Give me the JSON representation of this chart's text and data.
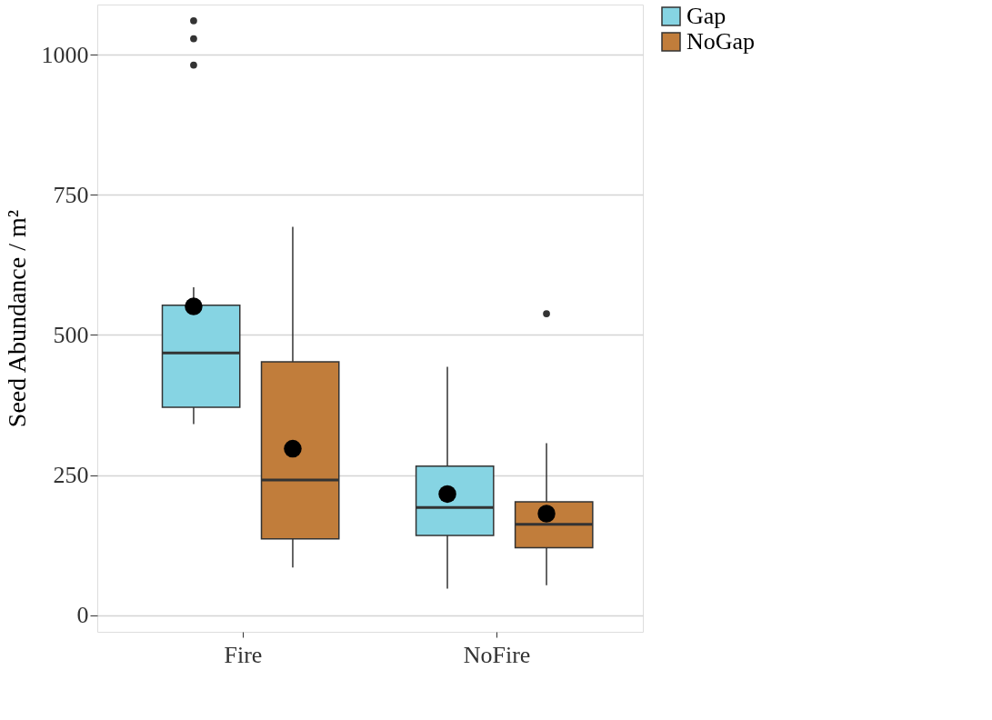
{
  "chart_data": {
    "type": "box",
    "ylabel": "Seed Abundance / m²",
    "categories": [
      "Fire",
      "NoFire"
    ],
    "ylim": [
      -30,
      1090
    ],
    "yticks": [
      0,
      250,
      500,
      750,
      1000
    ],
    "grid": "y",
    "legend": "right",
    "series": [
      {
        "name": "Gap",
        "color": "#86d4e3",
        "boxes": [
          {
            "low": 341,
            "q1": 371,
            "median": 468,
            "q3": 553,
            "high": 585,
            "mean": 551,
            "outliers": [
              982,
              1029,
              1061
            ]
          },
          {
            "low": 47,
            "q1": 142,
            "median": 192,
            "q3": 266,
            "high": 443,
            "mean": 216
          }
        ]
      },
      {
        "name": "NoGap",
        "color": "#c17d3b",
        "boxes": [
          {
            "low": 85,
            "q1": 136,
            "median": 241,
            "q3": 452,
            "high": 693,
            "mean": 297
          },
          {
            "low": 53,
            "q1": 120,
            "median": 162,
            "q3": 202,
            "high": 307,
            "mean": 181,
            "outliers": [
              538
            ]
          }
        ]
      }
    ]
  }
}
